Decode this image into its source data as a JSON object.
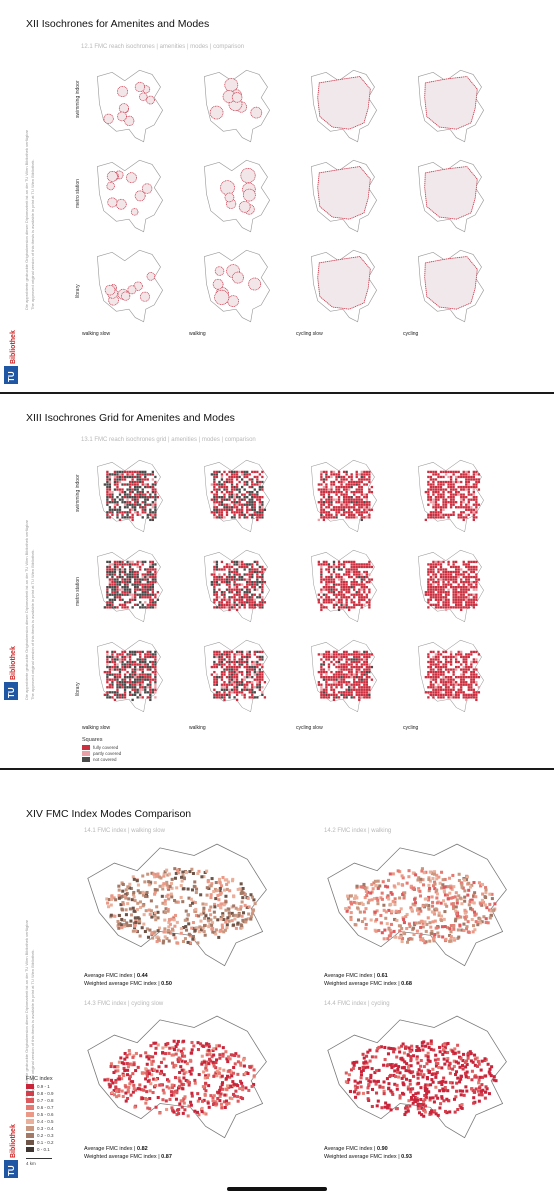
{
  "pages": [
    {
      "title": "XII Isochrones for Amenites and Modes",
      "subtitle": "12.1 FMC reach isochrones | amenities | modes | comparison",
      "rows": [
        "swimming indoor",
        "metro station",
        "library"
      ],
      "columns": [
        "walking slow",
        "walking",
        "cycling slow",
        "cycling"
      ]
    },
    {
      "title": "XIII Isochrones Grid for Amenites and Modes",
      "subtitle": "13.1 FMC reach isochrones grid | amenities | modes | comparison",
      "rows": [
        "swimming indoor",
        "metro station",
        "library"
      ],
      "columns": [
        "walking slow",
        "walking",
        "cycling slow",
        "cycling"
      ],
      "legend": {
        "title": "Squares",
        "items": [
          {
            "label": "fully covered",
            "color": "#cc2f3f"
          },
          {
            "label": "partly covered",
            "color": "#e9a0a6"
          },
          {
            "label": "not covered",
            "color": "#4a4a4a"
          }
        ]
      }
    },
    {
      "title": "XIV FMC Index Modes Comparison",
      "panels": [
        {
          "subtitle": "14.1 FMC index | walking slow",
          "avg_label": "Average FMC index",
          "avg_value": "0.44",
          "wavg_label": "Weighted average FMC index",
          "wavg_value": "0.50"
        },
        {
          "subtitle": "14.2 FMC index | walking",
          "avg_label": "Average FMC index",
          "avg_value": "0.61",
          "wavg_label": "Weighted average FMC index",
          "wavg_value": "0.68"
        },
        {
          "subtitle": "14.3 FMC index | cycling slow",
          "avg_label": "Average FMC index",
          "avg_value": "0.82",
          "wavg_label": "Weighted average FMC index",
          "wavg_value": "0.87"
        },
        {
          "subtitle": "14.4 FMC index | cycling",
          "avg_label": "Average FMC index",
          "avg_value": "0.90",
          "wavg_label": "Weighted average FMC index",
          "wavg_value": "0.93"
        }
      ],
      "legend": {
        "title": "FMC index",
        "items": [
          {
            "label": "0.9 - 1",
            "color": "#c8253b"
          },
          {
            "label": "0.8 - 0.9",
            "color": "#d23f4c"
          },
          {
            "label": "0.7 - 0.8",
            "color": "#dc5a5e"
          },
          {
            "label": "0.6 - 0.7",
            "color": "#e57a72"
          },
          {
            "label": "0.5 - 0.6",
            "color": "#eb9886"
          },
          {
            "label": "0.4 - 0.5",
            "color": "#e9b09b"
          },
          {
            "label": "0.3 - 0.4",
            "color": "#c9967f"
          },
          {
            "label": "0.2 - 0.3",
            "color": "#a27866"
          },
          {
            "label": "0.1 - 0.2",
            "color": "#6f5448"
          },
          {
            "label": "0 - 0.1",
            "color": "#3f3531"
          }
        ],
        "scale": "4 km"
      }
    }
  ],
  "sidebar": {
    "logo_text": "TU Bibliothek",
    "note_de": "Die approbierte gedruckte Originalversion dieser Diplomarbeit ist an der TU Wien Bibliothek verfügbar",
    "note_en": "The approved original version of this thesis is available in print at TU Wien Bibliothek."
  }
}
